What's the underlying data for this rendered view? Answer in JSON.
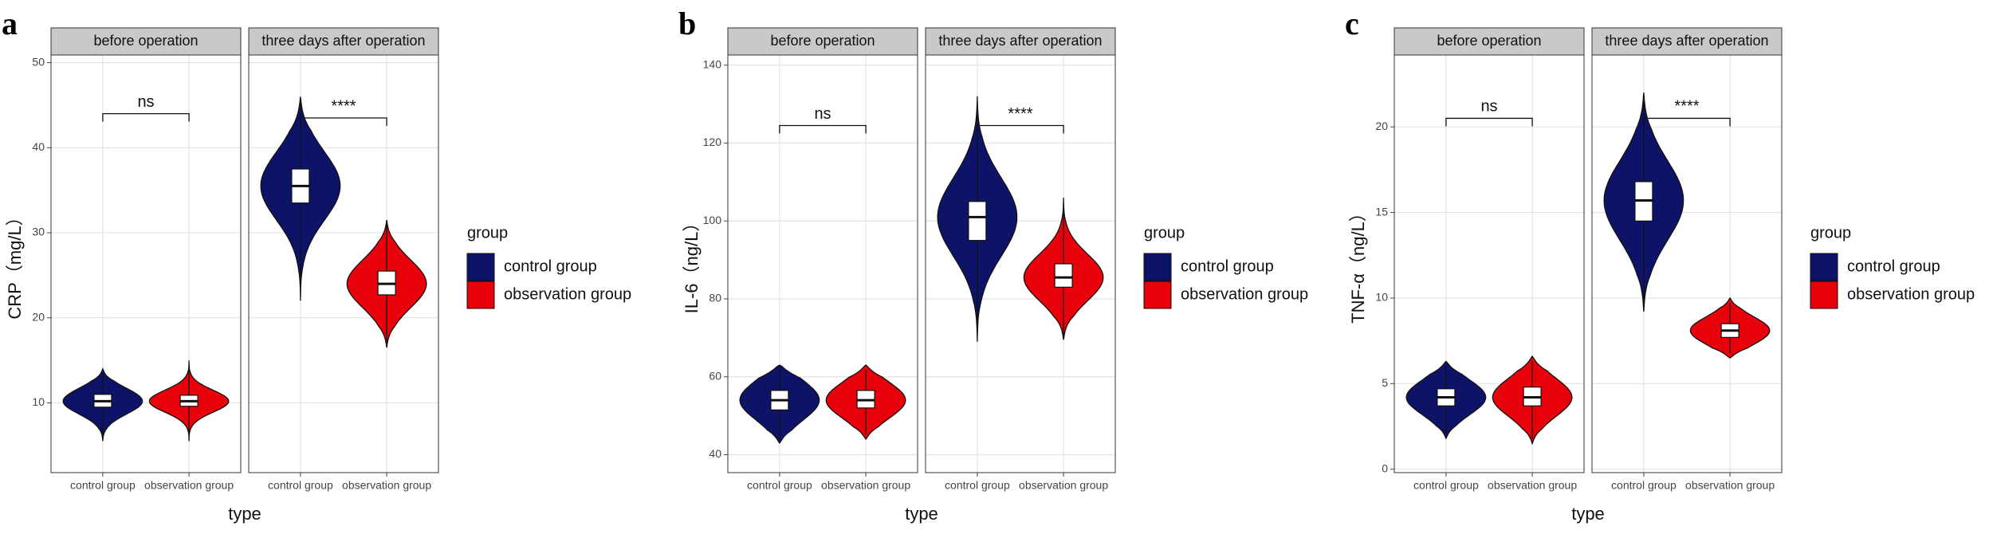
{
  "chart_data": [
    {
      "type": "violin",
      "panel_label": "a",
      "ylabel": "CRP（mg/L）",
      "xlabel": "type",
      "ylim": [
        1.8,
        50.9
      ],
      "yticks": [
        10,
        20,
        30,
        40,
        50
      ],
      "grid": true,
      "categories": [
        "control group",
        "observation group"
      ],
      "legend_title": "group",
      "series": [
        {
          "name": "control group",
          "color": "#0d1366"
        },
        {
          "name": "observation group",
          "color": "#e8000b"
        }
      ],
      "facets": [
        {
          "title": "before operation",
          "annotation": "ns",
          "annotation_y": 44,
          "violins": [
            {
              "min": 5.5,
              "q1": 9.5,
              "median": 10.2,
              "q3": 11,
              "max": 14
            },
            {
              "min": 5.5,
              "q1": 9.6,
              "median": 10.2,
              "q3": 10.9,
              "max": 15
            }
          ]
        },
        {
          "title": "three days after operation",
          "annotation": "****",
          "annotation_y": 43.5,
          "violins": [
            {
              "min": 22,
              "q1": 33.5,
              "median": 35.5,
              "q3": 37.5,
              "max": 46
            },
            {
              "min": 16.5,
              "q1": 22.7,
              "median": 24,
              "q3": 25.5,
              "max": 31.5
            }
          ]
        }
      ]
    },
    {
      "type": "violin",
      "panel_label": "b",
      "ylabel": "IL-6（ng/L）",
      "xlabel": "type",
      "ylim": [
        35.4,
        142.6
      ],
      "yticks": [
        40,
        60,
        80,
        100,
        120,
        140
      ],
      "grid": true,
      "categories": [
        "control group",
        "observation group"
      ],
      "legend_title": "group",
      "series": [
        {
          "name": "control group",
          "color": "#0d1366"
        },
        {
          "name": "observation group",
          "color": "#e8000b"
        }
      ],
      "facets": [
        {
          "title": "before operation",
          "annotation": "ns",
          "annotation_y": 124.5,
          "violins": [
            {
              "min": 43,
              "q1": 51.5,
              "median": 54,
              "q3": 56.5,
              "max": 63
            },
            {
              "min": 44,
              "q1": 52,
              "median": 54,
              "q3": 56.5,
              "max": 63
            }
          ]
        },
        {
          "title": "three days after operation",
          "annotation": "****",
          "annotation_y": 124.5,
          "violins": [
            {
              "min": 69,
              "q1": 95,
              "median": 101,
              "q3": 105,
              "max": 132
            },
            {
              "min": 69.5,
              "q1": 83,
              "median": 85.5,
              "q3": 89,
              "max": 106
            }
          ]
        }
      ]
    },
    {
      "type": "violin",
      "panel_label": "c",
      "ylabel": "TNF-α（ng/L）",
      "xlabel": "type",
      "ylim": [
        -0.2,
        24.2
      ],
      "yticks": [
        0,
        5,
        10,
        15,
        20
      ],
      "grid": true,
      "categories": [
        "control group",
        "observation group"
      ],
      "legend_title": "group",
      "series": [
        {
          "name": "control group",
          "color": "#0d1366"
        },
        {
          "name": "observation group",
          "color": "#e8000b"
        }
      ],
      "facets": [
        {
          "title": "before operation",
          "annotation": "ns",
          "annotation_y": 20.5,
          "violins": [
            {
              "min": 1.8,
              "q1": 3.7,
              "median": 4.2,
              "q3": 4.7,
              "max": 6.3
            },
            {
              "min": 1.5,
              "q1": 3.7,
              "median": 4.2,
              "q3": 4.8,
              "max": 6.6
            }
          ]
        },
        {
          "title": "three days after operation",
          "annotation": "****",
          "annotation_y": 20.5,
          "violins": [
            {
              "min": 9.2,
              "q1": 14.5,
              "median": 15.7,
              "q3": 16.8,
              "max": 22
            },
            {
              "min": 6.5,
              "q1": 7.7,
              "median": 8.1,
              "q3": 8.5,
              "max": 10
            }
          ]
        }
      ]
    }
  ]
}
